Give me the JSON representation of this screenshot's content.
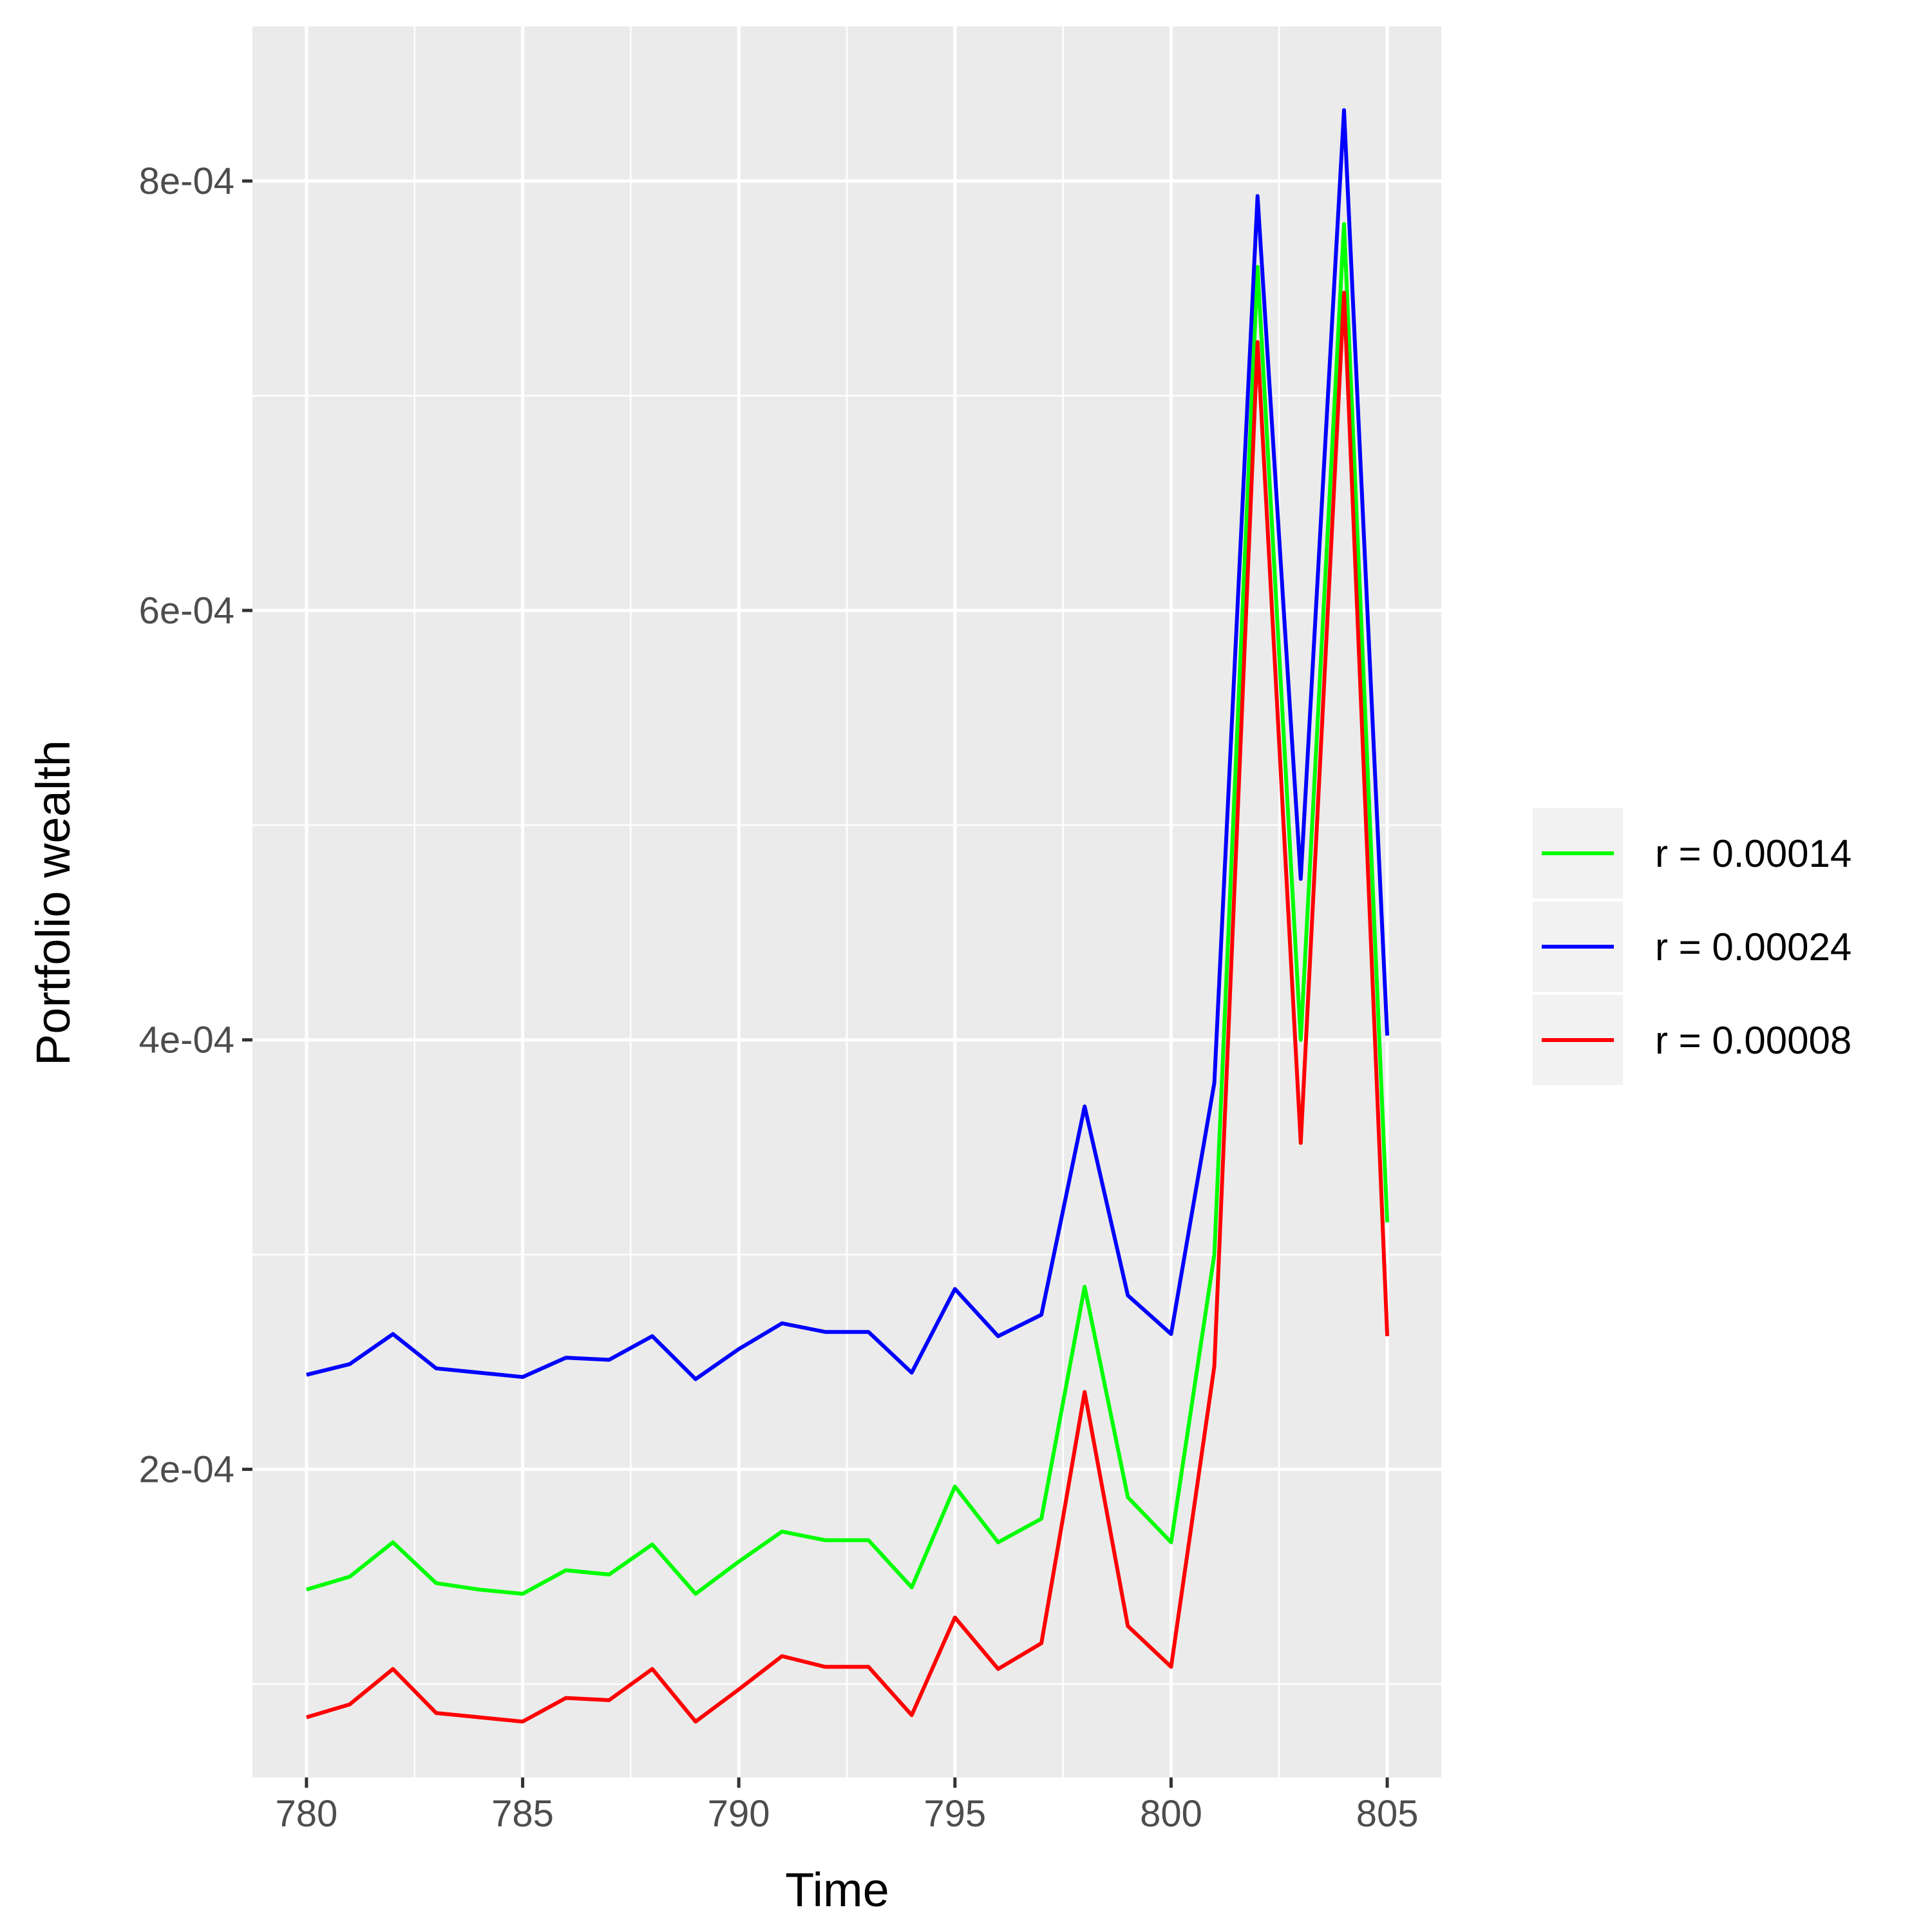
{
  "chart_data": {
    "type": "line",
    "xlabel": "Time",
    "ylabel": "Portfolio wealth",
    "xlim": [
      778.75,
      806.25
    ],
    "ylim": [
      5.65e-05,
      0.000872
    ],
    "x_ticks": [
      780,
      785,
      790,
      795,
      800,
      805
    ],
    "y_ticks": [
      0.0002,
      0.0004,
      0.0006,
      0.0008
    ],
    "y_tick_labels": [
      "2e-04",
      "4e-04",
      "6e-04",
      "8e-04"
    ],
    "grid": true,
    "legend_position": "right",
    "x": [
      780,
      781,
      782,
      783,
      784,
      785,
      786,
      787,
      788,
      789,
      790,
      791,
      792,
      793,
      794,
      795,
      796,
      797,
      798,
      799,
      800,
      801,
      802,
      803,
      804,
      805
    ],
    "series": [
      {
        "name": "r = 0.00014",
        "color": "#00ff00",
        "values": [
          0.000144,
          0.00015,
          0.000166,
          0.000147,
          0.000144,
          0.000142,
          0.000153,
          0.000151,
          0.000165,
          0.000142,
          0.000157,
          0.000171,
          0.000167,
          0.000167,
          0.000145,
          0.000192,
          0.000166,
          0.000177,
          0.000285,
          0.000187,
          0.000166,
          0.0003,
          0.00076,
          0.0004,
          0.00078,
          0.000315
        ]
      },
      {
        "name": "r = 0.00024",
        "color": "#0000ff",
        "values": [
          0.000244,
          0.000249,
          0.000263,
          0.000247,
          0.000245,
          0.000243,
          0.000252,
          0.000251,
          0.000262,
          0.000242,
          0.000256,
          0.000268,
          0.000264,
          0.000264,
          0.000245,
          0.000284,
          0.000262,
          0.000272,
          0.000369,
          0.000281,
          0.000263,
          0.00038,
          0.000793,
          0.000475,
          0.000833,
          0.000402
        ]
      },
      {
        "name": "r = 0.00008",
        "color": "#ff0000",
        "values": [
          8.45e-05,
          9.05e-05,
          0.000107,
          8.65e-05,
          8.45e-05,
          8.25e-05,
          9.35e-05,
          9.25e-05,
          0.000107,
          8.25e-05,
          9.75e-05,
          0.000113,
          0.000108,
          0.000108,
          8.55e-05,
          0.000131,
          0.000107,
          0.000119,
          0.000236,
          0.000127,
          0.000108,
          0.000248,
          0.000725,
          0.000352,
          0.000748,
          0.000262
        ]
      }
    ]
  }
}
